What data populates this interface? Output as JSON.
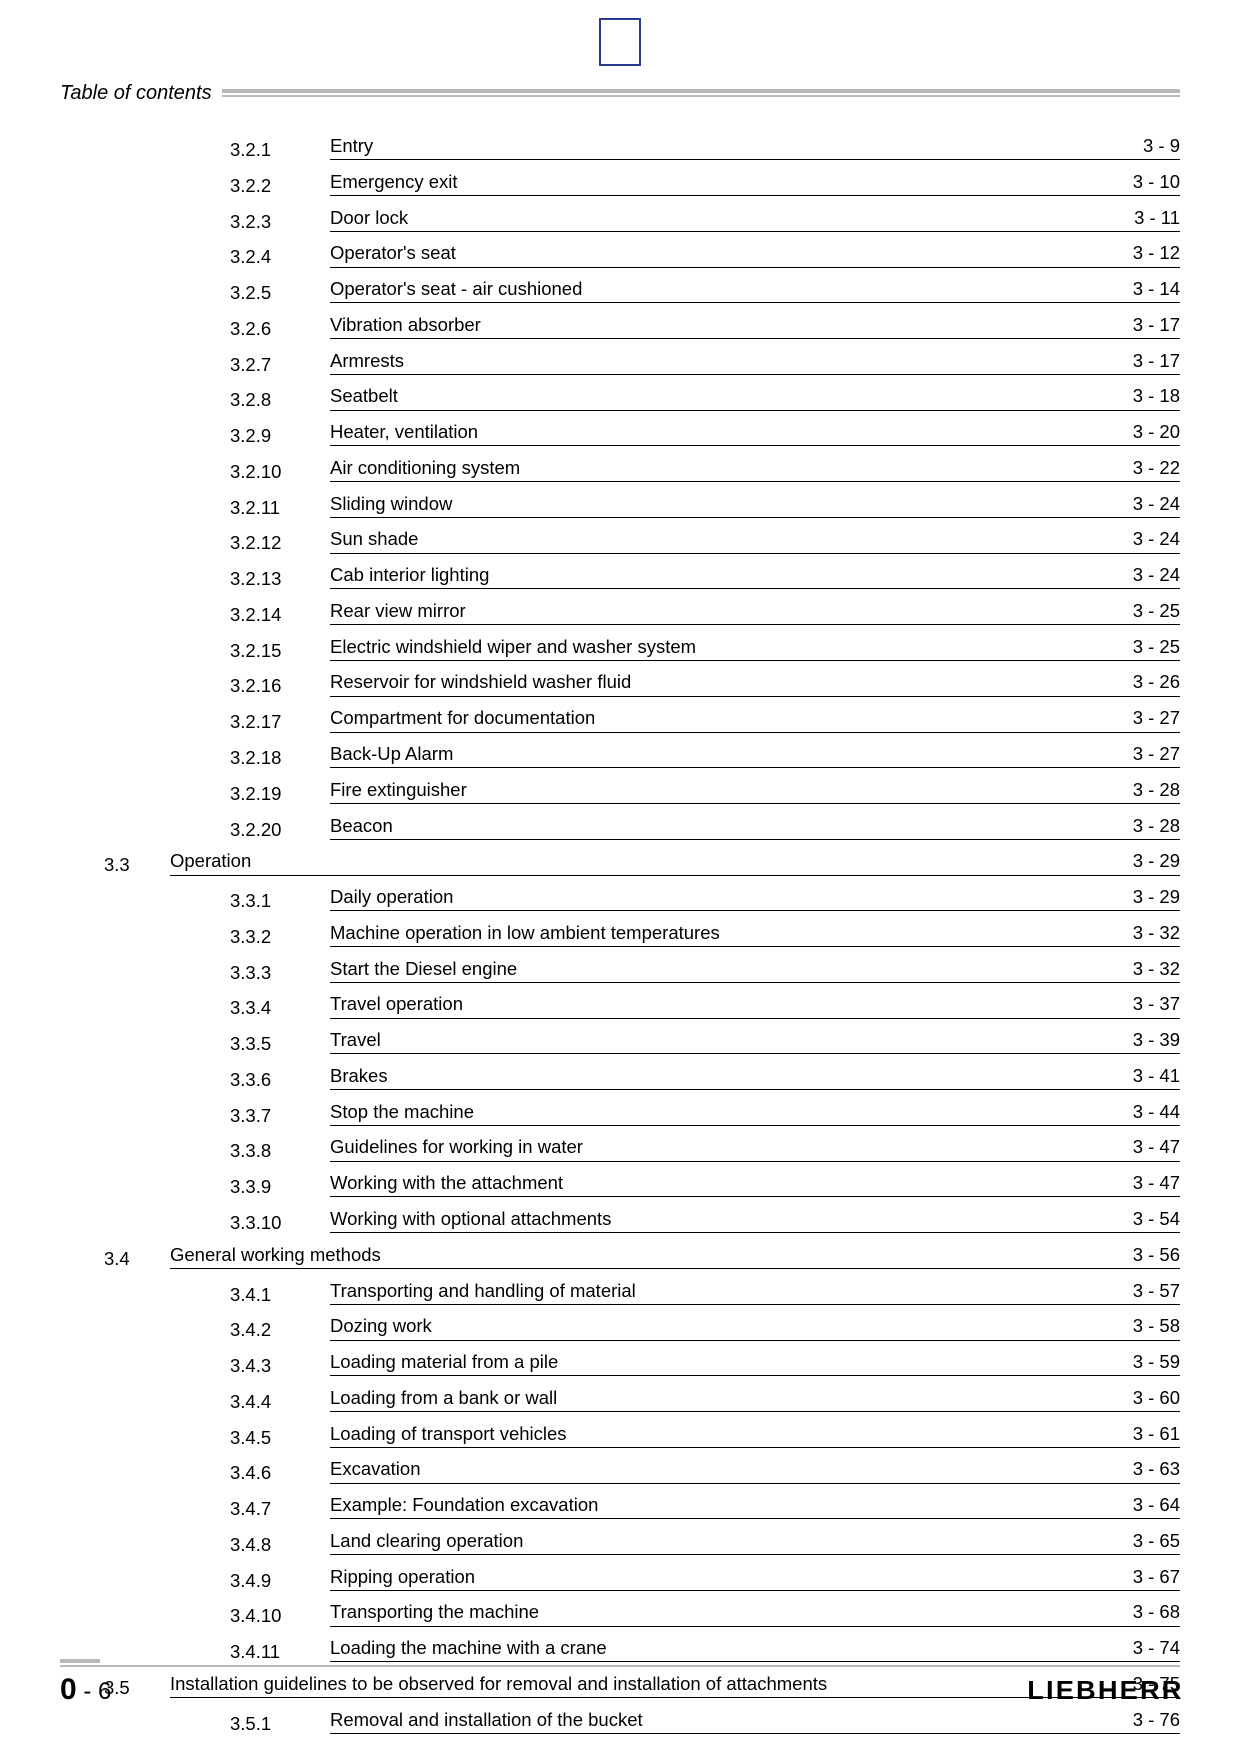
{
  "header": {
    "title": "Table of contents"
  },
  "footer": {
    "page_section": "0",
    "page_dash": " - ",
    "page_number": "6",
    "brand": "LIEBHERR"
  },
  "toc": {
    "groups": [
      {
        "section_number": "",
        "section_title": "",
        "section_page": "",
        "is_continuation": true,
        "items": [
          {
            "num": "3.2.1",
            "title": "Entry",
            "page": "3 - 9"
          },
          {
            "num": "3.2.2",
            "title": "Emergency exit",
            "page": "3 - 10"
          },
          {
            "num": "3.2.3",
            "title": "Door lock",
            "page": "3 - 11"
          },
          {
            "num": "3.2.4",
            "title": "Operator's seat",
            "page": "3 - 12"
          },
          {
            "num": "3.2.5",
            "title": "Operator's seat - air cushioned",
            "page": "3 - 14"
          },
          {
            "num": "3.2.6",
            "title": "Vibration absorber",
            "page": "3 - 17"
          },
          {
            "num": "3.2.7",
            "title": "Armrests",
            "page": "3 - 17"
          },
          {
            "num": "3.2.8",
            "title": "Seatbelt",
            "page": "3 - 18"
          },
          {
            "num": "3.2.9",
            "title": "Heater, ventilation",
            "page": "3 - 20"
          },
          {
            "num": "3.2.10",
            "title": "Air conditioning system",
            "page": "3 - 22"
          },
          {
            "num": "3.2.11",
            "title": "Sliding window",
            "page": "3 - 24"
          },
          {
            "num": "3.2.12",
            "title": "Sun shade",
            "page": "3 - 24"
          },
          {
            "num": "3.2.13",
            "title": "Cab interior lighting",
            "page": "3 - 24"
          },
          {
            "num": "3.2.14",
            "title": "Rear view mirror",
            "page": "3 - 25"
          },
          {
            "num": "3.2.15",
            "title": "Electric windshield wiper and washer system",
            "page": "3 - 25"
          },
          {
            "num": "3.2.16",
            "title": "Reservoir for windshield washer fluid",
            "page": "3 - 26"
          },
          {
            "num": "3.2.17",
            "title": "Compartment for documentation",
            "page": "3 - 27"
          },
          {
            "num": "3.2.18",
            "title": "Back-Up Alarm",
            "page": "3 - 27"
          },
          {
            "num": "3.2.19",
            "title": "Fire extinguisher",
            "page": "3 - 28"
          },
          {
            "num": "3.2.20",
            "title": "Beacon",
            "page": "3 - 28"
          }
        ]
      },
      {
        "section_number": "3.3",
        "section_title": "Operation",
        "section_page": "3 - 29",
        "is_continuation": false,
        "items": [
          {
            "num": "3.3.1",
            "title": "Daily operation",
            "page": "3 - 29"
          },
          {
            "num": "3.3.2",
            "title": "Machine operation in low ambient temperatures",
            "page": "3 - 32"
          },
          {
            "num": "3.3.3",
            "title": "Start the Diesel engine",
            "page": "3 - 32"
          },
          {
            "num": "3.3.4",
            "title": "Travel operation",
            "page": "3 - 37"
          },
          {
            "num": "3.3.5",
            "title": "Travel",
            "page": "3 - 39"
          },
          {
            "num": "3.3.6",
            "title": "Brakes",
            "page": "3 - 41"
          },
          {
            "num": "3.3.7",
            "title": "Stop the machine",
            "page": "3 - 44"
          },
          {
            "num": "3.3.8",
            "title": "Guidelines for working in water",
            "page": "3 - 47"
          },
          {
            "num": "3.3.9",
            "title": "Working with the attachment",
            "page": "3 - 47"
          },
          {
            "num": "3.3.10",
            "title": "Working with optional attachments",
            "page": "3 - 54"
          }
        ]
      },
      {
        "section_number": "3.4",
        "section_title": "General working methods",
        "section_page": "3 - 56",
        "is_continuation": false,
        "items": [
          {
            "num": "3.4.1",
            "title": "Transporting and handling of material",
            "page": "3 - 57"
          },
          {
            "num": "3.4.2",
            "title": "Dozing work",
            "page": "3 - 58"
          },
          {
            "num": "3.4.3",
            "title": "Loading material from a pile",
            "page": "3 - 59"
          },
          {
            "num": "3.4.4",
            "title": "Loading from a bank or wall",
            "page": "3 - 60"
          },
          {
            "num": "3.4.5",
            "title": "Loading of transport vehicles",
            "page": "3 - 61"
          },
          {
            "num": "3.4.6",
            "title": "Excavation",
            "page": "3 - 63"
          },
          {
            "num": "3.4.7",
            "title": "Example: Foundation excavation",
            "page": "3 - 64"
          },
          {
            "num": "3.4.8",
            "title": "Land clearing operation",
            "page": "3 - 65"
          },
          {
            "num": "3.4.9",
            "title": "Ripping operation",
            "page": "3 - 67"
          },
          {
            "num": "3.4.10",
            "title": "Transporting the machine",
            "page": "3 - 68"
          },
          {
            "num": "3.4.11",
            "title": "Loading the machine with a crane",
            "page": "3 - 74"
          }
        ]
      },
      {
        "section_number": "3.5",
        "section_title": "Installation guidelines to be observed for removal and installation of attachments",
        "section_page": "3 - 75",
        "is_continuation": false,
        "items": [
          {
            "num": "3.5.1",
            "title": "Removal and installation of the bucket",
            "page": "3 - 76"
          }
        ]
      }
    ]
  }
}
